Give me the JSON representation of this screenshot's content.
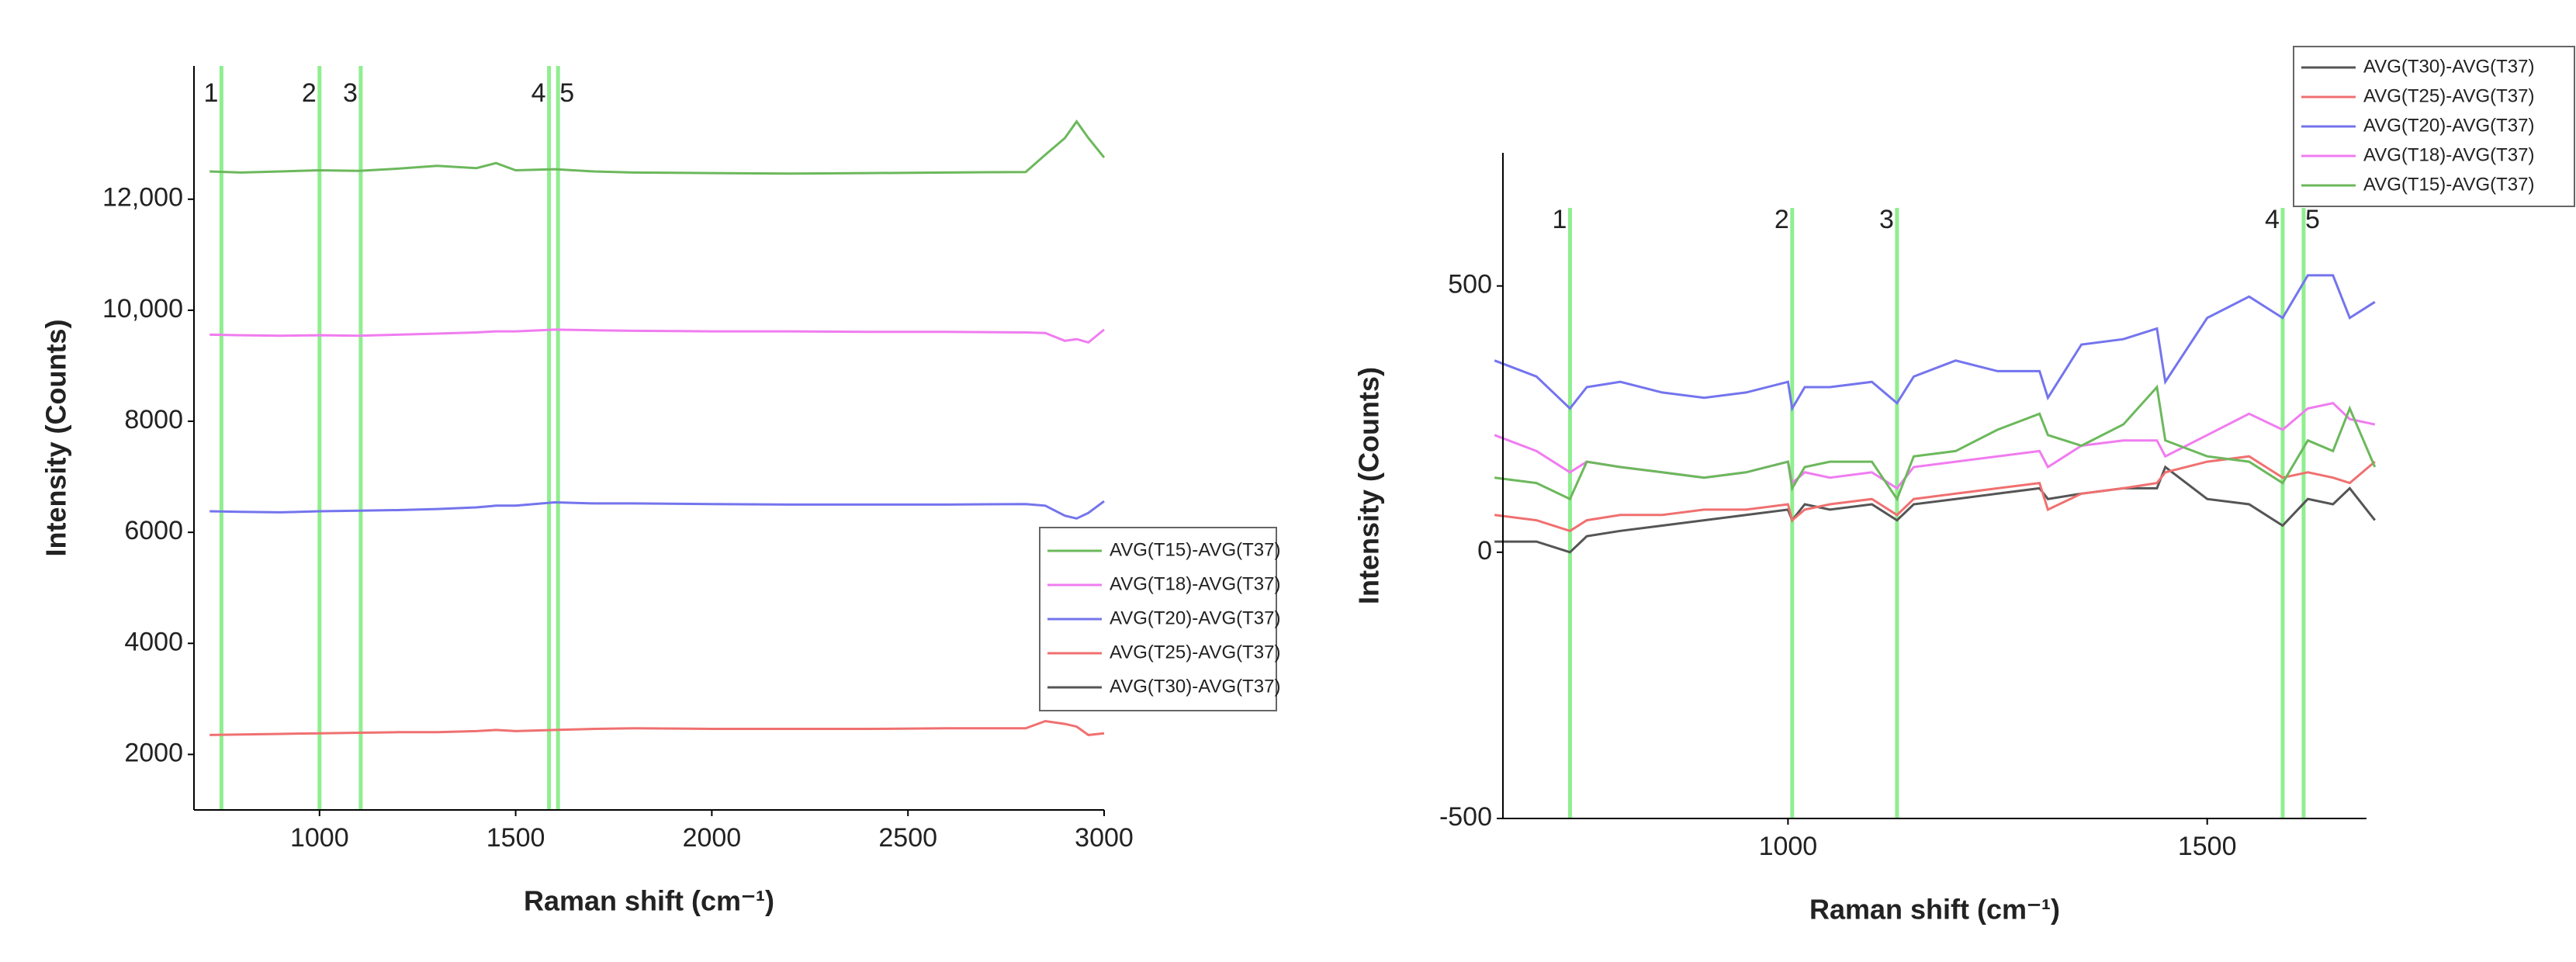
{
  "chart_data": [
    {
      "type": "line",
      "x_label": "Raman shift (cm⁻¹)",
      "y_label": "Intensity (Counts)",
      "xlim": [
        680,
        3000
      ],
      "ylim": [
        1000,
        14400
      ],
      "xticks": [
        1000,
        1500,
        2000,
        2500,
        3000
      ],
      "yticks": [
        2000,
        4000,
        6000,
        8000,
        {
          "value": 10000,
          "label": "10,000"
        },
        {
          "value": 12000,
          "label": "12,000"
        }
      ],
      "legend": "lower right",
      "marker_color": "#90ee90",
      "markers": [
        {
          "x": 750,
          "label": "1"
        },
        {
          "x": 1000,
          "label": "2"
        },
        {
          "x": 1105,
          "label": "3"
        },
        {
          "x": 1585,
          "label": "4"
        },
        {
          "x": 1608,
          "label": "5"
        }
      ],
      "x": [
        720,
        800,
        900,
        1000,
        1100,
        1200,
        1300,
        1400,
        1450,
        1500,
        1600,
        1700,
        1800,
        2000,
        2200,
        2400,
        2600,
        2800,
        2850,
        2900,
        2930,
        2960,
        3000
      ],
      "series": [
        {
          "name": "AVG(T15)-AVG(T37)",
          "color": "#6cb85c",
          "values": [
            12500,
            12480,
            12500,
            12520,
            12510,
            12550,
            12600,
            12560,
            12650,
            12520,
            12540,
            12500,
            12480,
            12470,
            12460,
            12470,
            12480,
            12490,
            12800,
            13100,
            13400,
            13100,
            12750
          ]
        },
        {
          "name": "AVG(T18)-AVG(T37)",
          "color": "#f07cf0",
          "values": [
            9560,
            9550,
            9540,
            9550,
            9540,
            9560,
            9580,
            9600,
            9620,
            9620,
            9650,
            9640,
            9630,
            9620,
            9620,
            9610,
            9610,
            9600,
            9590,
            9450,
            9480,
            9420,
            9650
          ]
        },
        {
          "name": "AVG(T20)-AVG(T37)",
          "color": "#7474ee",
          "values": [
            6380,
            6370,
            6360,
            6380,
            6390,
            6400,
            6420,
            6450,
            6480,
            6480,
            6540,
            6520,
            6520,
            6510,
            6500,
            6500,
            6500,
            6510,
            6480,
            6300,
            6250,
            6350,
            6560
          ]
        },
        {
          "name": "AVG(T25)-AVG(T37)",
          "color": "#f07070",
          "values": [
            2350,
            2360,
            2370,
            2380,
            2390,
            2400,
            2400,
            2420,
            2440,
            2420,
            2440,
            2460,
            2470,
            2460,
            2460,
            2460,
            2470,
            2470,
            2600,
            2550,
            2500,
            2350,
            2380
          ]
        },
        {
          "name": "AVG(T30)-AVG(T37)",
          "color": "#555555",
          "values": [
            null,
            null,
            null,
            null,
            null,
            null,
            null,
            null,
            null,
            null,
            null,
            null,
            null,
            null,
            null,
            null,
            null,
            null,
            null,
            null,
            null,
            null,
            null
          ]
        }
      ]
    },
    {
      "type": "line",
      "x_label": "Raman shift (cm⁻¹)",
      "y_label": "Intensity (Counts)",
      "xlim": [
        660,
        1690
      ],
      "ylim": [
        -500,
        750
      ],
      "xticks": [
        1000,
        1500
      ],
      "yticks": [
        -500,
        0,
        500
      ],
      "legend": "upper right",
      "marker_color": "#90ee90",
      "markers": [
        {
          "x": 740,
          "label": "1"
        },
        {
          "x": 1005,
          "label": "2"
        },
        {
          "x": 1130,
          "label": "3"
        },
        {
          "x": 1590,
          "label": "4"
        },
        {
          "x": 1615,
          "label": "5"
        }
      ],
      "x": [
        650,
        700,
        740,
        760,
        800,
        850,
        900,
        950,
        1000,
        1005,
        1020,
        1050,
        1100,
        1130,
        1150,
        1200,
        1250,
        1300,
        1310,
        1350,
        1400,
        1440,
        1450,
        1500,
        1550,
        1590,
        1620,
        1650,
        1670,
        1700
      ],
      "series": [
        {
          "name": "AVG(T30)-AVG(T37)",
          "color": "#555555",
          "values": [
            20,
            20,
            0,
            30,
            40,
            50,
            60,
            70,
            80,
            60,
            90,
            80,
            90,
            60,
            90,
            100,
            110,
            120,
            100,
            110,
            120,
            120,
            160,
            100,
            90,
            50,
            100,
            90,
            120,
            60
          ]
        },
        {
          "name": "AVG(T25)-AVG(T37)",
          "color": "#f07070",
          "values": [
            70,
            60,
            40,
            60,
            70,
            70,
            80,
            80,
            90,
            60,
            80,
            90,
            100,
            70,
            100,
            110,
            120,
            130,
            80,
            110,
            120,
            130,
            150,
            170,
            180,
            140,
            150,
            140,
            130,
            170
          ]
        },
        {
          "name": "AVG(T20)-AVG(T37)",
          "color": "#7474ee",
          "values": [
            360,
            330,
            270,
            310,
            320,
            300,
            290,
            300,
            320,
            270,
            310,
            310,
            320,
            280,
            330,
            360,
            340,
            340,
            290,
            390,
            400,
            420,
            320,
            440,
            480,
            440,
            520,
            520,
            440,
            470
          ]
        },
        {
          "name": "AVG(T18)-AVG(T37)",
          "color": "#f07cf0",
          "values": [
            220,
            190,
            150,
            170,
            160,
            150,
            140,
            150,
            170,
            130,
            150,
            140,
            150,
            120,
            160,
            170,
            180,
            190,
            160,
            200,
            210,
            210,
            180,
            220,
            260,
            230,
            270,
            280,
            250,
            240
          ]
        },
        {
          "name": "AVG(T15)-AVG(T37)",
          "color": "#6cb85c",
          "values": [
            140,
            130,
            100,
            170,
            160,
            150,
            140,
            150,
            170,
            120,
            160,
            170,
            170,
            100,
            180,
            190,
            230,
            260,
            220,
            200,
            240,
            310,
            210,
            180,
            170,
            130,
            210,
            190,
            270,
            160
          ]
        }
      ]
    }
  ]
}
